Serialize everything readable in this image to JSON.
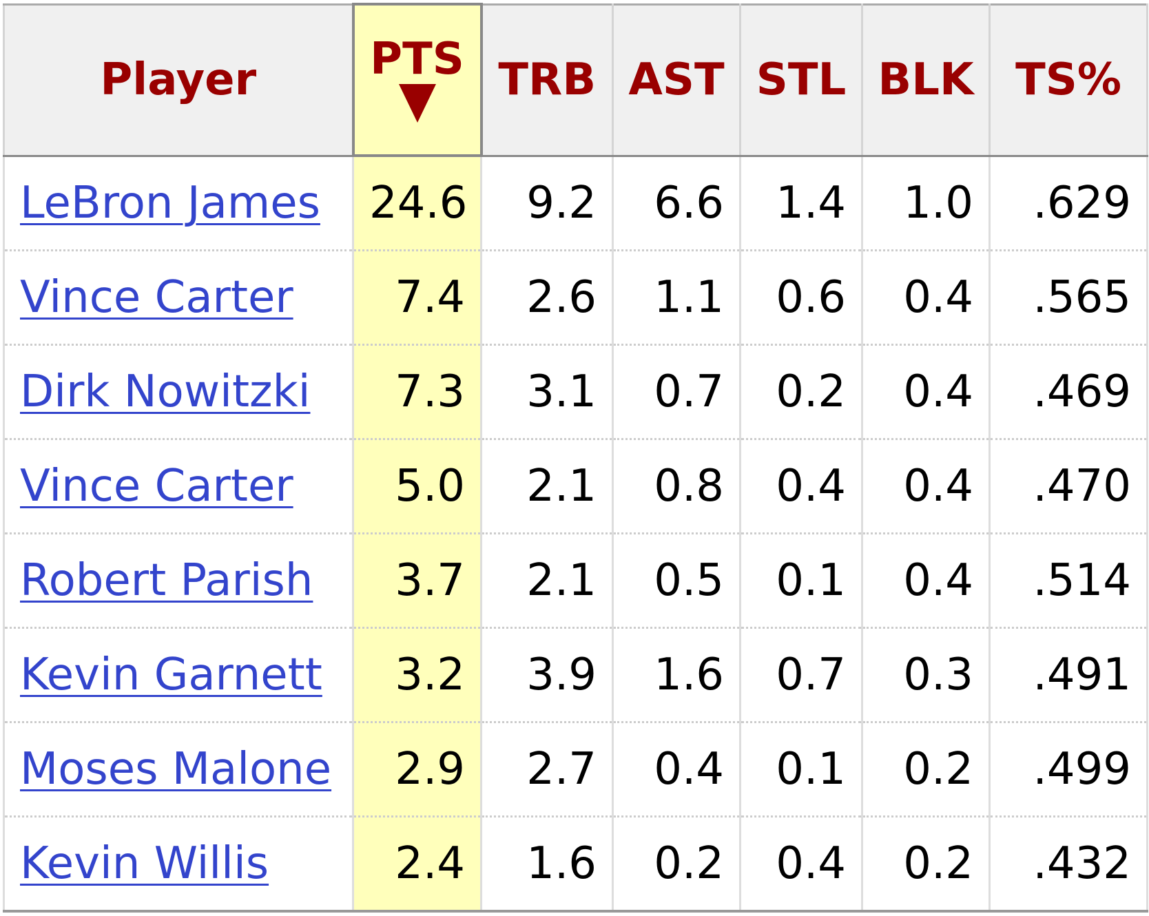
{
  "columns": {
    "player": "Player",
    "pts": "PTS",
    "trb": "TRB",
    "ast": "AST",
    "stl": "STL",
    "blk": "BLK",
    "ts": "TS%"
  },
  "sort": {
    "column": "PTS",
    "direction": "descending",
    "indicator": "triangle-down-icon"
  },
  "colors": {
    "header_text": "#990000",
    "header_bg": "#f0f0f0",
    "sorted_col_bg": "#ffffbb",
    "link": "#3344cc"
  },
  "rows": [
    {
      "player": "LeBron James",
      "pts": "24.6",
      "trb": "9.2",
      "ast": "6.6",
      "stl": "1.4",
      "blk": "1.0",
      "ts": ".629"
    },
    {
      "player": "Vince Carter",
      "pts": "7.4",
      "trb": "2.6",
      "ast": "1.1",
      "stl": "0.6",
      "blk": "0.4",
      "ts": ".565"
    },
    {
      "player": "Dirk Nowitzki",
      "pts": "7.3",
      "trb": "3.1",
      "ast": "0.7",
      "stl": "0.2",
      "blk": "0.4",
      "ts": ".469"
    },
    {
      "player": "Vince Carter",
      "pts": "5.0",
      "trb": "2.1",
      "ast": "0.8",
      "stl": "0.4",
      "blk": "0.4",
      "ts": ".470"
    },
    {
      "player": "Robert Parish",
      "pts": "3.7",
      "trb": "2.1",
      "ast": "0.5",
      "stl": "0.1",
      "blk": "0.4",
      "ts": ".514"
    },
    {
      "player": "Kevin Garnett",
      "pts": "3.2",
      "trb": "3.9",
      "ast": "1.6",
      "stl": "0.7",
      "blk": "0.3",
      "ts": ".491"
    },
    {
      "player": "Moses Malone",
      "pts": "2.9",
      "trb": "2.7",
      "ast": "0.4",
      "stl": "0.1",
      "blk": "0.2",
      "ts": ".499"
    },
    {
      "player": "Kevin Willis",
      "pts": "2.4",
      "trb": "1.6",
      "ast": "0.2",
      "stl": "0.4",
      "blk": "0.2",
      "ts": ".432"
    }
  ]
}
